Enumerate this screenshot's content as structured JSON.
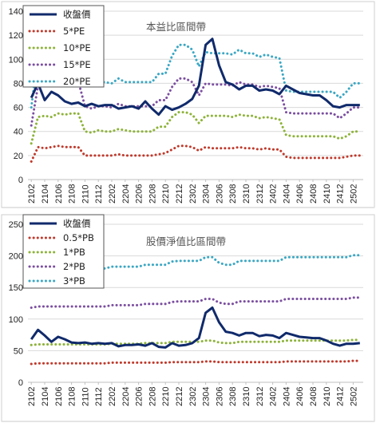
{
  "chart_data": [
    {
      "type": "line",
      "title": "本益比區間帶",
      "x": [
        "2102",
        "2103",
        "2104",
        "2105",
        "2106",
        "2107",
        "2108",
        "2109",
        "2110",
        "2111",
        "2112",
        "2201",
        "2202",
        "2203",
        "2204",
        "2205",
        "2206",
        "2207",
        "2208",
        "2209",
        "2210",
        "2211",
        "2212",
        "2301",
        "2302",
        "2303",
        "2304",
        "2305",
        "2306",
        "2307",
        "2308",
        "2309",
        "2310",
        "2311",
        "2312",
        "2401",
        "2402",
        "2403",
        "2404",
        "2405",
        "2406",
        "2407",
        "2408",
        "2409",
        "2410",
        "2411",
        "2412",
        "2501",
        "2502",
        "2503"
      ],
      "xtick_labels": [
        "2102",
        "2104",
        "2106",
        "2108",
        "2110",
        "2112",
        "2202",
        "2204",
        "2206",
        "2208",
        "2210",
        "2212",
        "2302",
        "2304",
        "2306",
        "2308",
        "2310",
        "2312",
        "2402",
        "2404",
        "2406",
        "2408",
        "2410",
        "2412",
        "2502"
      ],
      "ylim": [
        0,
        140
      ],
      "yticks": [
        0,
        20,
        40,
        60,
        80,
        100,
        120,
        140
      ],
      "grid": "horizontal",
      "legend_position": "top-left",
      "series": [
        {
          "name": "收盤價",
          "style": "solid",
          "color": "#102a6b",
          "values": [
            68,
            80,
            66,
            73,
            70,
            65,
            63,
            64,
            61,
            63,
            61,
            62,
            62,
            59,
            60,
            61,
            59,
            65,
            59,
            54,
            61,
            58,
            60,
            63,
            67,
            78,
            112,
            117,
            95,
            81,
            79,
            75,
            78,
            78,
            74,
            75,
            74,
            71,
            78,
            75,
            72,
            71,
            70,
            70,
            66,
            61,
            60,
            62,
            62,
            62
          ]
        },
        {
          "name": "5*PE",
          "style": "dotted",
          "color": "#c0392b",
          "values": [
            15,
            27,
            26,
            27,
            28,
            27,
            27,
            27,
            20,
            20,
            20,
            20,
            20,
            21,
            20,
            20,
            20,
            20,
            20,
            21,
            22,
            25,
            28,
            28,
            27,
            24,
            27,
            26,
            26,
            26,
            26,
            27,
            26,
            26,
            25,
            26,
            25,
            25,
            19,
            18,
            18,
            18,
            18,
            18,
            18,
            18,
            18,
            19,
            20,
            20
          ]
        },
        {
          "name": "10*PE",
          "style": "dotted",
          "color": "#8db339",
          "values": [
            30,
            52,
            53,
            52,
            55,
            54,
            55,
            55,
            40,
            39,
            41,
            40,
            40,
            42,
            41,
            40,
            40,
            40,
            40,
            44,
            44,
            52,
            56,
            56,
            54,
            47,
            53,
            53,
            53,
            53,
            52,
            54,
            53,
            53,
            51,
            52,
            51,
            50,
            37,
            36,
            36,
            36,
            36,
            36,
            36,
            36,
            34,
            36,
            40,
            40
          ]
        },
        {
          "name": "15*PE",
          "style": "dotted",
          "color": "#7b4ea0",
          "values": [
            45,
            78,
            79,
            79,
            82,
            82,
            82,
            82,
            61,
            59,
            61,
            61,
            60,
            63,
            61,
            61,
            61,
            61,
            61,
            66,
            66,
            77,
            84,
            84,
            81,
            70,
            80,
            79,
            79,
            79,
            78,
            81,
            79,
            79,
            77,
            78,
            77,
            76,
            56,
            55,
            55,
            55,
            55,
            55,
            55,
            55,
            51,
            55,
            60,
            60
          ]
        },
        {
          "name": "20*PE",
          "style": "dotted",
          "color": "#3aa7c4",
          "values": [
            60,
            104,
            106,
            105,
            110,
            109,
            109,
            109,
            81,
            79,
            81,
            81,
            80,
            84,
            81,
            81,
            81,
            81,
            81,
            88,
            88,
            103,
            112,
            112,
            108,
            94,
            106,
            105,
            105,
            105,
            104,
            108,
            105,
            105,
            102,
            104,
            102,
            101,
            74,
            73,
            73,
            73,
            73,
            73,
            73,
            73,
            68,
            73,
            80,
            80
          ]
        }
      ]
    },
    {
      "type": "line",
      "title": "股價淨值比區間帶",
      "x": [
        "2102",
        "2103",
        "2104",
        "2105",
        "2106",
        "2107",
        "2108",
        "2109",
        "2110",
        "2111",
        "2112",
        "2201",
        "2202",
        "2203",
        "2204",
        "2205",
        "2206",
        "2207",
        "2208",
        "2209",
        "2210",
        "2211",
        "2212",
        "2301",
        "2302",
        "2303",
        "2304",
        "2305",
        "2306",
        "2307",
        "2308",
        "2309",
        "2310",
        "2311",
        "2312",
        "2401",
        "2402",
        "2403",
        "2404",
        "2405",
        "2406",
        "2407",
        "2408",
        "2409",
        "2410",
        "2411",
        "2412",
        "2501",
        "2502",
        "2503"
      ],
      "xtick_labels": [
        "2102",
        "2104",
        "2106",
        "2108",
        "2110",
        "2112",
        "2202",
        "2204",
        "2206",
        "2208",
        "2210",
        "2212",
        "2302",
        "2304",
        "2306",
        "2308",
        "2310",
        "2312",
        "2402",
        "2404",
        "2406",
        "2408",
        "2410",
        "2412",
        "2502"
      ],
      "ylim": [
        0,
        250
      ],
      "yticks": [
        0,
        50,
        100,
        150,
        200,
        250
      ],
      "grid": "horizontal",
      "legend_position": "top-left",
      "series": [
        {
          "name": "收盤價",
          "style": "solid",
          "color": "#102a6b",
          "values": [
            68,
            83,
            74,
            64,
            72,
            68,
            63,
            62,
            63,
            61,
            62,
            61,
            62,
            57,
            59,
            59,
            60,
            58,
            62,
            56,
            55,
            62,
            58,
            59,
            62,
            70,
            110,
            118,
            95,
            80,
            78,
            74,
            78,
            78,
            73,
            75,
            74,
            70,
            78,
            75,
            72,
            71,
            70,
            70,
            66,
            61,
            58,
            61,
            61,
            62
          ]
        },
        {
          "name": "0.5*PB",
          "style": "dotted",
          "color": "#c0392b",
          "values": [
            29,
            30,
            30,
            30,
            30,
            30,
            30,
            30,
            30,
            30,
            30,
            30,
            31,
            31,
            31,
            31,
            31,
            31,
            31,
            31,
            31,
            32,
            32,
            32,
            32,
            32,
            33,
            33,
            32,
            32,
            32,
            32,
            32,
            32,
            32,
            32,
            32,
            32,
            33,
            33,
            33,
            33,
            33,
            33,
            33,
            33,
            33,
            33,
            34,
            34
          ]
        },
        {
          "name": "1*PB",
          "style": "dotted",
          "color": "#8db339",
          "values": [
            59,
            60,
            60,
            60,
            60,
            60,
            60,
            60,
            60,
            60,
            60,
            60,
            61,
            61,
            61,
            61,
            61,
            62,
            62,
            62,
            62,
            64,
            64,
            64,
            64,
            64,
            66,
            66,
            63,
            62,
            62,
            64,
            64,
            64,
            64,
            64,
            64,
            64,
            66,
            66,
            66,
            66,
            66,
            66,
            66,
            66,
            66,
            66,
            67,
            67
          ]
        },
        {
          "name": "2*PB",
          "style": "dotted",
          "color": "#7b4ea0",
          "values": [
            118,
            120,
            120,
            120,
            120,
            120,
            120,
            120,
            120,
            120,
            120,
            120,
            122,
            122,
            122,
            122,
            122,
            124,
            124,
            124,
            124,
            127,
            128,
            128,
            128,
            128,
            132,
            132,
            126,
            124,
            124,
            128,
            128,
            128,
            128,
            128,
            128,
            128,
            132,
            132,
            132,
            132,
            132,
            132,
            132,
            132,
            132,
            132,
            134,
            134
          ]
        },
        {
          "name": "3*PB",
          "style": "dotted",
          "color": "#3aa7c4",
          "values": [
            178,
            180,
            180,
            180,
            180,
            180,
            180,
            180,
            180,
            180,
            180,
            180,
            183,
            183,
            183,
            183,
            183,
            186,
            186,
            186,
            186,
            191,
            192,
            192,
            192,
            192,
            198,
            198,
            189,
            186,
            186,
            192,
            192,
            192,
            192,
            192,
            192,
            192,
            198,
            198,
            198,
            198,
            198,
            198,
            198,
            198,
            198,
            198,
            201,
            201
          ]
        }
      ]
    }
  ]
}
